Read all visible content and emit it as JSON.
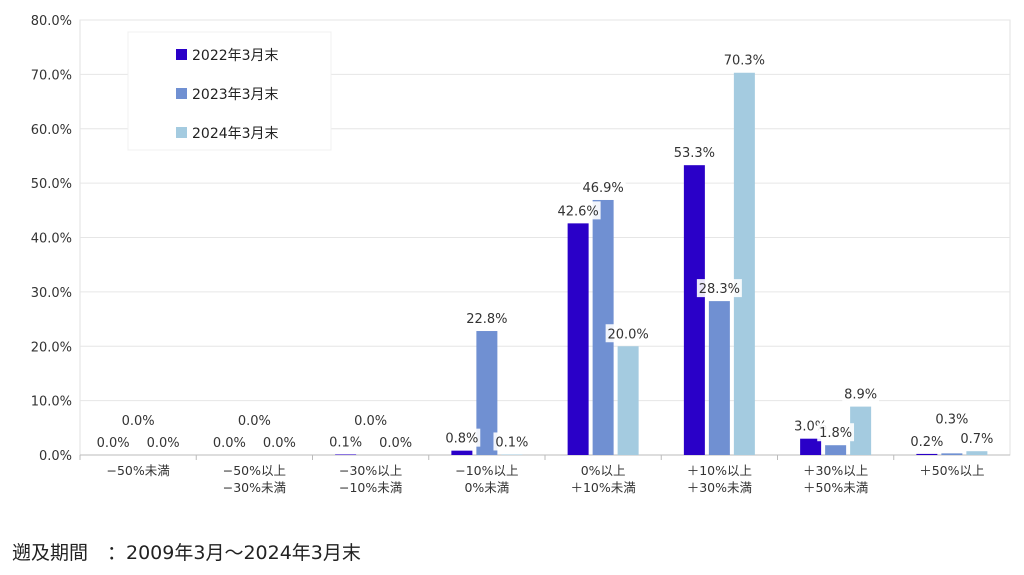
{
  "chart_data": {
    "type": "bar",
    "categories": [
      [
        "−50%未満"
      ],
      [
        "−50%以上",
        "−30%未満"
      ],
      [
        "−30%以上",
        "−10%未満"
      ],
      [
        "−10%以上",
        "0%未満"
      ],
      [
        "0%以上",
        "＋10%未満"
      ],
      [
        "＋10%以上",
        "＋30%未満"
      ],
      [
        "＋30%以上",
        "＋50%未満"
      ],
      [
        "＋50%以上"
      ]
    ],
    "series": [
      {
        "name": "2022年3月末",
        "color": "#2a00c8",
        "values": [
          0.0,
          0.0,
          0.1,
          0.8,
          42.6,
          53.3,
          3.0,
          0.2
        ],
        "labels": [
          "0.0%",
          "0.0%",
          "0.1%",
          "0.8%",
          "42.6%",
          "53.3%",
          "3.0%",
          "0.2%"
        ]
      },
      {
        "name": "2023年3月末",
        "color": "#7090d2",
        "values": [
          0.0,
          0.0,
          0.0,
          22.8,
          46.9,
          28.3,
          1.8,
          0.3
        ],
        "labels": [
          "0.0%",
          "0.0%",
          "0.0%",
          "22.8%",
          "46.9%",
          "28.3%",
          "1.8%",
          "0.3%"
        ]
      },
      {
        "name": "2024年3月末",
        "color": "#a4cbe0",
        "values": [
          0.0,
          0.0,
          0.0,
          0.1,
          20.0,
          70.3,
          8.9,
          0.7
        ],
        "labels": [
          "0.0%",
          "0.0%",
          "0.0%",
          "0.1%",
          "20.0%",
          "70.3%",
          "8.9%",
          "0.7%"
        ]
      }
    ],
    "yticks": [
      "0.0%",
      "10.0%",
      "20.0%",
      "30.0%",
      "40.0%",
      "50.0%",
      "60.0%",
      "70.0%",
      "80.0%"
    ],
    "ylim": [
      0,
      80
    ],
    "grid": true,
    "legend_position": "top-left"
  },
  "footnote": "遡及期間　：2009年3月～2024年3月末"
}
